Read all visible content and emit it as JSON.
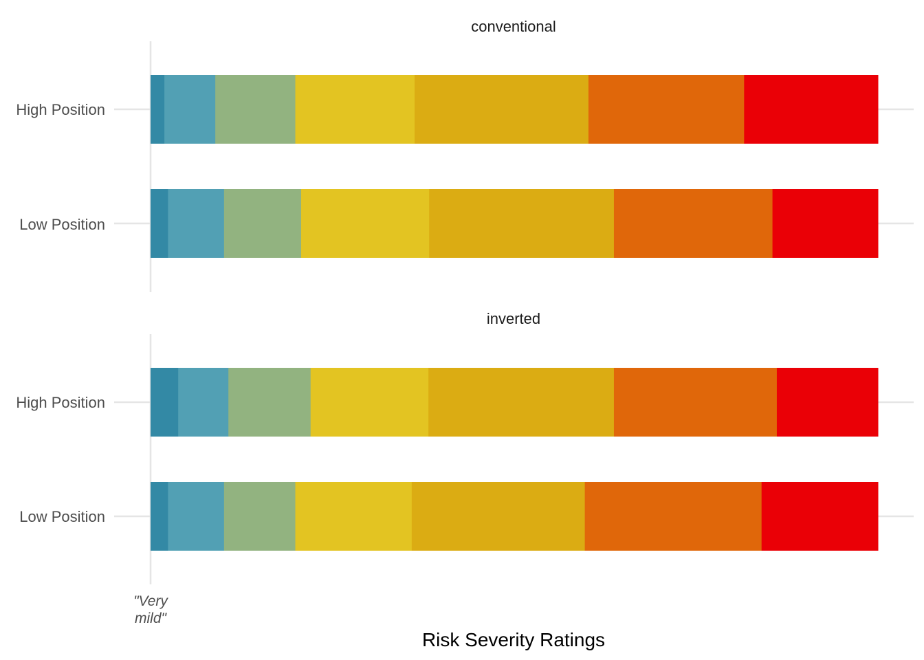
{
  "chart_data": {
    "type": "bar",
    "orientation": "horizontal",
    "stacked": true,
    "normalized": true,
    "xlabel": "Risk Severity Ratings",
    "x_tick_labels": [
      "\"Very",
      "mild\""
    ],
    "grid": "major y gridlines and left axis line",
    "segment_colors": [
      "#3389a5",
      "#52a0b4",
      "#92b380",
      "#e3c422",
      "#dbac13",
      "#e0670a",
      "#ea0006"
    ],
    "panels": [
      {
        "title": "conventional",
        "categories": [
          "High Position",
          "Low Position"
        ],
        "segments": [
          [
            0.019,
            0.07,
            0.11,
            0.164,
            0.239,
            0.214,
            0.184
          ],
          [
            0.024,
            0.077,
            0.106,
            0.176,
            0.254,
            0.218,
            0.145
          ]
        ]
      },
      {
        "title": "inverted",
        "categories": [
          "High Position",
          "Low Position"
        ],
        "segments": [
          [
            0.038,
            0.069,
            0.113,
            0.162,
            0.255,
            0.224,
            0.139
          ],
          [
            0.024,
            0.077,
            0.098,
            0.16,
            0.238,
            0.243,
            0.16
          ]
        ]
      }
    ]
  }
}
